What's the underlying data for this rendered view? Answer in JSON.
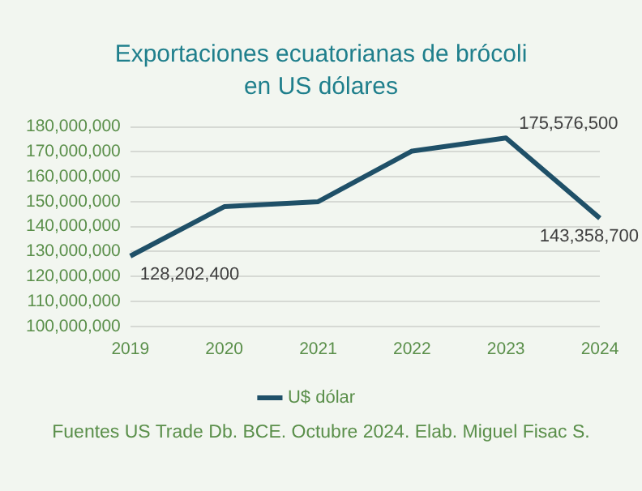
{
  "chart_data": {
    "type": "line",
    "title": "Exportaciones ecuatorianas de brócoli en US dólares",
    "categories": [
      "2019",
      "2020",
      "2021",
      "2022",
      "2023",
      "2024"
    ],
    "series": [
      {
        "name": "U$ dólar",
        "color": "#1f5068",
        "values": [
          128202400,
          148000000,
          150000000,
          170300000,
          175576500,
          143358700
        ],
        "value_labels": [
          "128,202,400",
          null,
          null,
          null,
          "175,576,500",
          "143,358,700"
        ]
      }
    ],
    "ylim": [
      100000000,
      180000000
    ],
    "yticks": [
      {
        "value": 100000000,
        "label": "100,000,000"
      },
      {
        "value": 110000000,
        "label": "110,000,000"
      },
      {
        "value": 120000000,
        "label": "120,000,000"
      },
      {
        "value": 130000000,
        "label": "130,000,000"
      },
      {
        "value": 140000000,
        "label": "140,000,000"
      },
      {
        "value": 150000000,
        "label": "150,000,000"
      },
      {
        "value": 160000000,
        "label": "160,000,000"
      },
      {
        "value": 170000000,
        "label": "170,000,000"
      },
      {
        "value": 180000000,
        "label": "180,000,000"
      }
    ],
    "grid": "y",
    "legend": "bottom",
    "marker": "none",
    "line_style": "solid",
    "annotations": [
      "Fuentes US Trade Db. BCE. Octubre 2024. Elab. Miguel Fisac S."
    ]
  }
}
